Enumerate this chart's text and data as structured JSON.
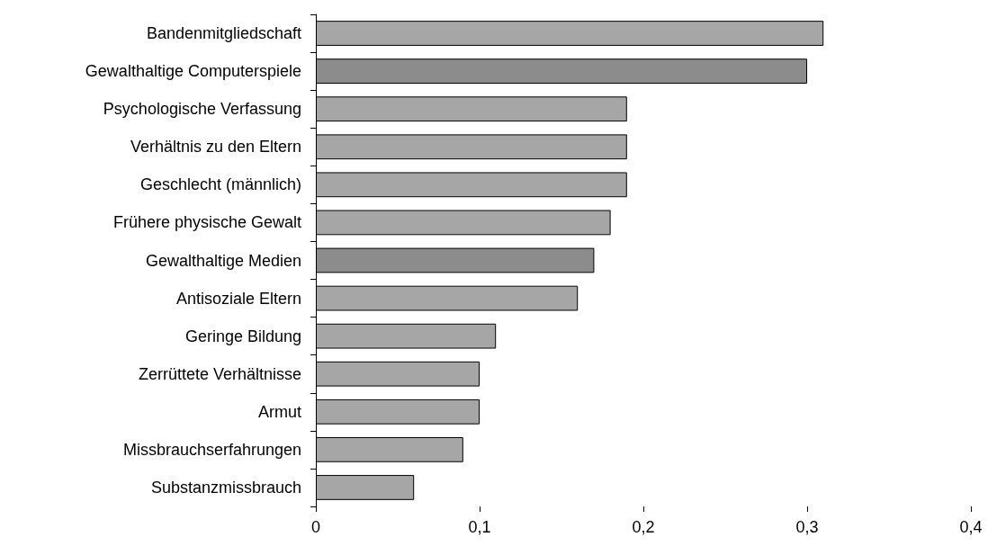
{
  "chart_data": {
    "type": "bar",
    "orientation": "horizontal",
    "categories": [
      "Bandenmitgliedschaft",
      "Gewalthaltige Computerspiele",
      "Psychologische Verfassung",
      "Verhältnis zu den Eltern",
      "Geschlecht (männlich)",
      "Frühere physische Gewalt",
      "Gewalthaltige Medien",
      "Antisoziale Eltern",
      "Geringe Bildung",
      "Zerrüttete Verhältnisse",
      "Armut",
      "Missbrauchserfahrungen",
      "Substanzmissbrauch"
    ],
    "values": [
      0.31,
      0.3,
      0.19,
      0.19,
      0.19,
      0.18,
      0.17,
      0.16,
      0.11,
      0.1,
      0.1,
      0.09,
      0.06
    ],
    "colors": [
      "#a6a6a6",
      "#8c8c8c",
      "#a6a6a6",
      "#a6a6a6",
      "#a6a6a6",
      "#a6a6a6",
      "#8c8c8c",
      "#a6a6a6",
      "#a6a6a6",
      "#a6a6a6",
      "#a6a6a6",
      "#a6a6a6",
      "#a6a6a6"
    ],
    "xlim": [
      0,
      0.4
    ],
    "xticks": [
      0,
      {
        "value": 0.1,
        "label": "0,1"
      },
      {
        "value": 0.2,
        "label": "0,2"
      },
      {
        "value": 0.3,
        "label": "0,3"
      },
      {
        "value": 0.4,
        "label": "0,4"
      }
    ],
    "grid": false
  }
}
